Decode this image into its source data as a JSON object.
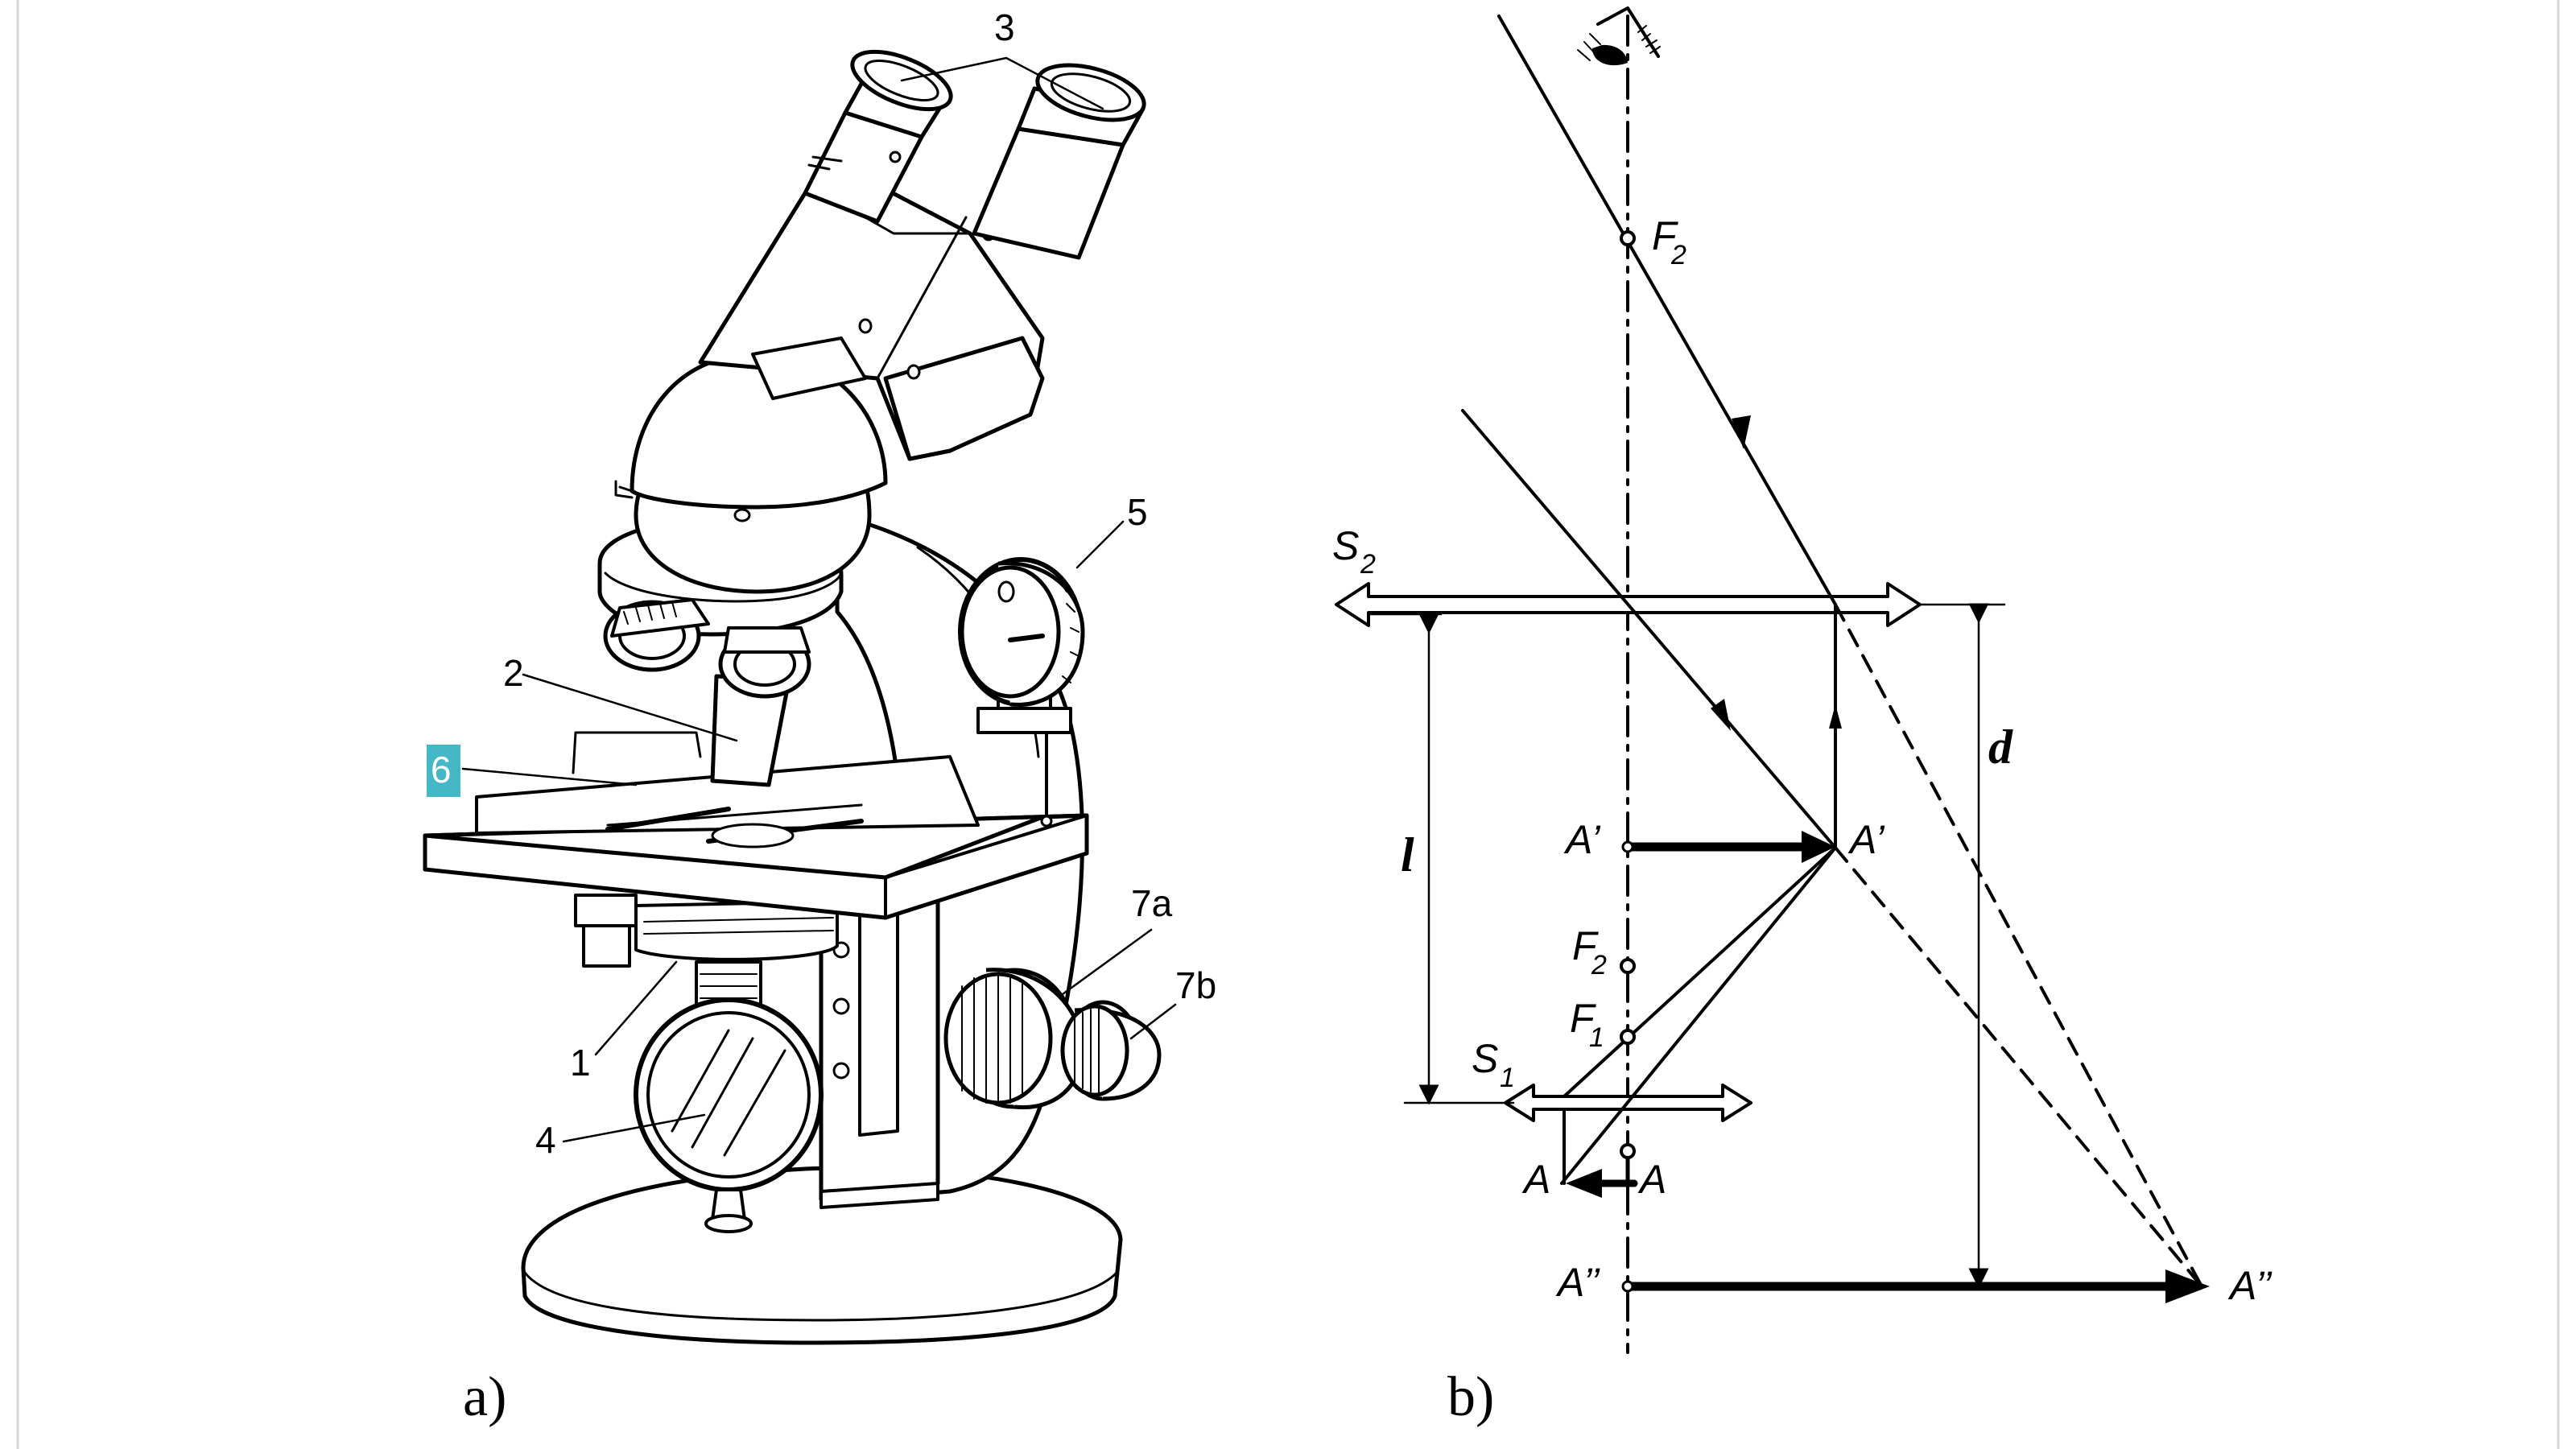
{
  "panel_a": {
    "caption": "a)",
    "part_labels": {
      "p1": "1",
      "p2": "2",
      "p3": "3",
      "p4": "4",
      "p5": "5",
      "p6": "6",
      "p7a": "7a",
      "p7b": "7b"
    },
    "highlight_color": "#45b8c8"
  },
  "panel_b": {
    "caption": "b)",
    "lens_s2": "S",
    "lens_s2_sub": "2",
    "lens_s1": "S",
    "lens_s1_sub": "1",
    "focus_f2_top": "F",
    "focus_f2_top_sub": "2",
    "focus_f2": "F",
    "focus_f2_sub": "2",
    "focus_f1": "F",
    "focus_f1_sub": "1",
    "distance_l": "l",
    "distance_d": "d",
    "point_a_left": "A",
    "point_a_right": "A",
    "point_a1_left": "A’",
    "point_a1_right": "A’",
    "point_a2_left": "A’’",
    "point_a2_right": "A’’"
  }
}
